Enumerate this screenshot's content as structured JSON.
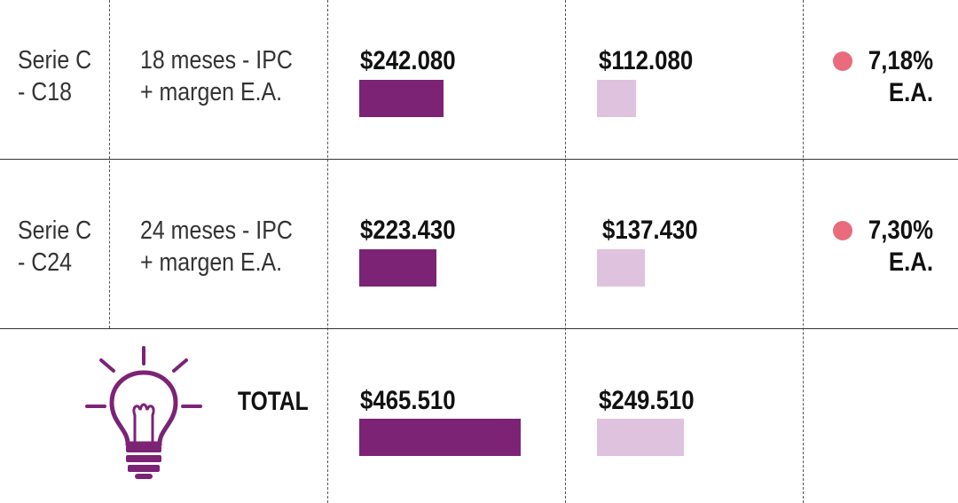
{
  "chart_data": {
    "type": "table",
    "columns": [
      "serie",
      "plazo",
      "valor_oscuro",
      "valor_claro",
      "tasa"
    ],
    "rows": [
      {
        "serie": [
          "Serie C",
          "- C18"
        ],
        "plazo": [
          "18 meses - IPC",
          "+ margen E.A."
        ],
        "dark_label": "$242.080",
        "dark_value": 242080,
        "light_label": "$112.080",
        "light_value": 112080,
        "rate": [
          "7,18%",
          "E.A."
        ]
      },
      {
        "serie": [
          "Serie C",
          "- C24"
        ],
        "plazo": [
          "24 meses - IPC",
          "+ margen E.A."
        ],
        "dark_label": "$223.430",
        "dark_value": 223430,
        "light_label": "$137.430",
        "light_value": 137430,
        "rate": [
          "7,30%",
          "E.A."
        ]
      }
    ],
    "total": {
      "label": "TOTAL",
      "dark_label": "$465.510",
      "dark_value": 465510,
      "light_label": "$249.510",
      "light_value": 249510
    },
    "colors": {
      "dark_bar": "#7c2376",
      "light_bar": "#dfc2de",
      "dot": "#e96b7c",
      "icon": "#7c2376"
    }
  },
  "icons": {
    "total": "lightbulb-icon",
    "rate_marker": "dot-icon"
  }
}
